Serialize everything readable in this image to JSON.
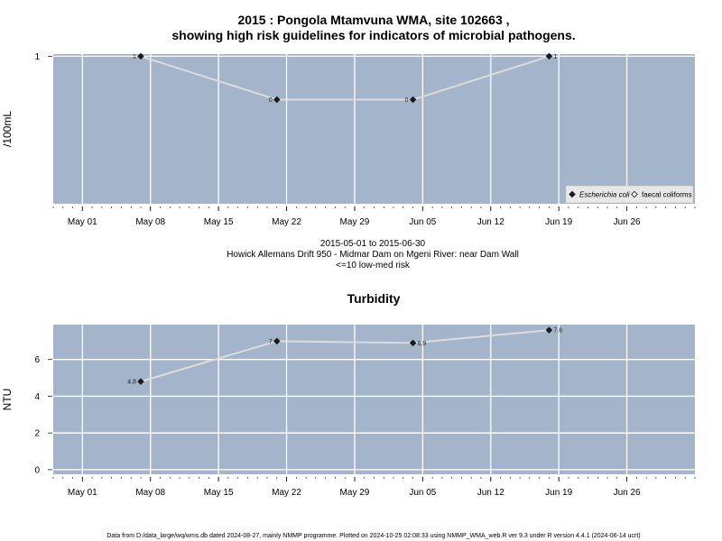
{
  "title_line1": "2015 : Pongola Mtamvuna WMA, site 102663 ,",
  "title_line2": "showing high risk guidelines for indicators of microbial pathogens.",
  "subtitle_lines": [
    "2015-05-01 to 2015-06-30",
    "Howick Allemans Drift 950 - Midmar Dam on Mgeni River: near Dam Wall",
    "<=10 low-med risk"
  ],
  "footer": "Data from D:/data_large/wq/wms.db dated 2024-08-27, mainly NMMP programme. Plotted on 2024-10-25 02:08:33 using NMMP_WMA_web.R ver 9.3 under R version 4.4.1 (2024-06-14 ucrt)",
  "colors": {
    "panel_bg": "#a3b4cb",
    "grid": "#ffffff",
    "line": "#dcdcdc",
    "point": "#1a1a1a"
  },
  "chart_data": [
    {
      "type": "line",
      "title": "",
      "ylabel": "/100mL",
      "x_tick_labels": [
        "May 01",
        "May 08",
        "May 15",
        "May 22",
        "May 29",
        "Jun 05",
        "Jun 12",
        "Jun 19",
        "Jun 26"
      ],
      "x_tick_dates": [
        "2015-05-01",
        "2015-05-08",
        "2015-05-15",
        "2015-05-22",
        "2015-05-29",
        "2015-06-05",
        "2015-06-12",
        "2015-06-19",
        "2015-06-26"
      ],
      "xlim": [
        "2015-04-28",
        "2015-07-03"
      ],
      "y_tick_labels": [
        "1"
      ],
      "y_tick_values": [
        1
      ],
      "ylim": [
        -2.4,
        1.05
      ],
      "grid": true,
      "legend_position": "bottom-right",
      "series": [
        {
          "name": "Escherichia coli",
          "marker": "filled-diamond",
          "x": [
            "2015-05-07",
            "2015-05-21",
            "2015-06-04",
            "2015-06-18"
          ],
          "y": [
            1,
            0,
            0,
            1
          ],
          "labels": [
            "1",
            "0",
            "0",
            "1"
          ]
        },
        {
          "name": "faecal coliforms",
          "marker": "open-diamond",
          "x": [],
          "y": [],
          "labels": []
        }
      ]
    },
    {
      "type": "line",
      "title": "Turbidity",
      "ylabel": "NTU",
      "x_tick_labels": [
        "May 01",
        "May 08",
        "May 15",
        "May 22",
        "May 29",
        "Jun 05",
        "Jun 12",
        "Jun 19",
        "Jun 26"
      ],
      "x_tick_dates": [
        "2015-05-01",
        "2015-05-08",
        "2015-05-15",
        "2015-05-22",
        "2015-05-29",
        "2015-06-05",
        "2015-06-12",
        "2015-06-19",
        "2015-06-26"
      ],
      "xlim": [
        "2015-04-28",
        "2015-07-03"
      ],
      "y_tick_labels": [
        "0",
        "2",
        "4",
        "6"
      ],
      "y_tick_values": [
        0,
        2,
        4,
        6
      ],
      "ylim": [
        -0.25,
        7.9
      ],
      "grid": true,
      "series": [
        {
          "name": "",
          "marker": "filled-diamond",
          "x": [
            "2015-05-07",
            "2015-05-21",
            "2015-06-04",
            "2015-06-18"
          ],
          "y": [
            4.8,
            7,
            6.9,
            7.6
          ],
          "labels": [
            "4.8",
            "7",
            "6.9",
            "7.6"
          ]
        }
      ]
    }
  ]
}
